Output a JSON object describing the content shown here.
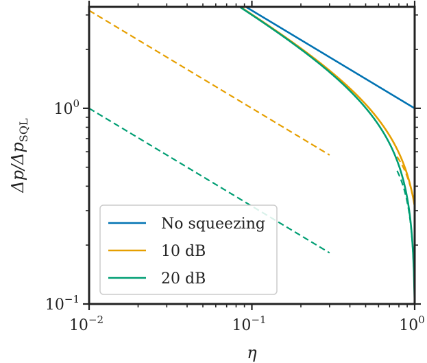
{
  "chart_data": {
    "type": "line",
    "xlabel": "η",
    "ylabel": "Δp/Δp_SQL",
    "xscale": "log",
    "yscale": "log",
    "xlim": [
      0.01,
      1
    ],
    "ylim": [
      0.1,
      3.3
    ],
    "x_tick_labels": [
      {
        "value": 0.01,
        "base": "10",
        "exp": "−2"
      },
      {
        "value": 0.1,
        "base": "10",
        "exp": "−1"
      },
      {
        "value": 1,
        "base": "10",
        "exp": "0"
      }
    ],
    "y_tick_labels": [
      {
        "value": 0.1,
        "base": "10",
        "exp": "−1"
      },
      {
        "value": 1,
        "base": "10",
        "exp": "0"
      }
    ],
    "legend_position": "lower-left",
    "series": [
      {
        "name": "No squeezing",
        "color": "#0072B2",
        "style": "solid",
        "kind": "nosq"
      },
      {
        "name": "10 dB",
        "color": "#E69F00",
        "style": "solid",
        "kind": "sq",
        "r": 1.1513
      },
      {
        "name": "20 dB",
        "color": "#009E73",
        "style": "solid",
        "kind": "sq",
        "r": 2.3026
      }
    ],
    "approximations": [
      {
        "color": "#E69F00",
        "style": "dashed",
        "r": 1.1513,
        "x_range": [
          0.01,
          0.3
        ]
      },
      {
        "color": "#E69F00",
        "style": "dashed",
        "r": 1.1513,
        "x_range": [
          0.78,
          1
        ]
      },
      {
        "color": "#009E73",
        "style": "dashed",
        "r": 2.3026,
        "x_range": [
          0.01,
          0.3
        ]
      },
      {
        "color": "#009E73",
        "style": "dashed",
        "r": 2.3026,
        "x_range": [
          0.78,
          1
        ]
      }
    ]
  }
}
